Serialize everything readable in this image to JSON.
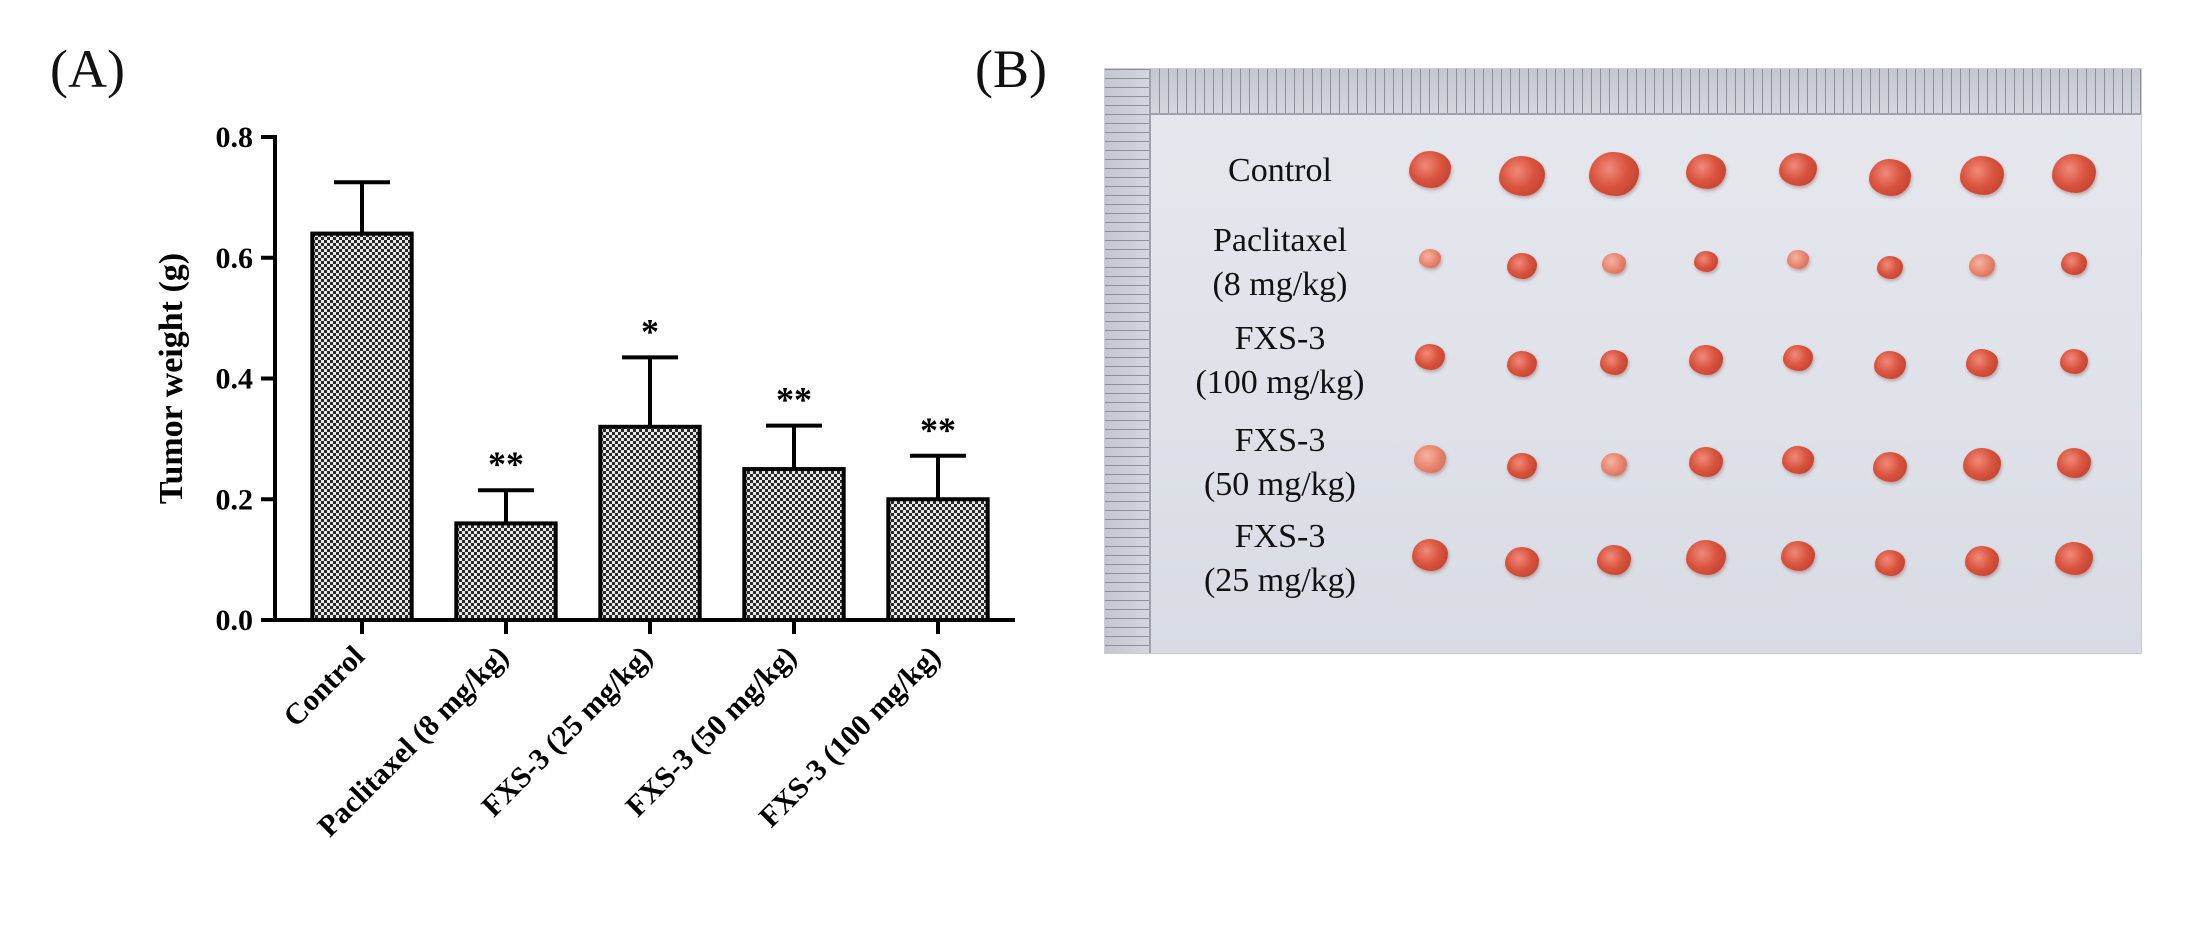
{
  "panels": {
    "a": "(A)",
    "b": "(B)"
  },
  "chart_data": {
    "type": "bar",
    "ylabel": "Tumor weight (g)",
    "xlabel": "",
    "ylim": [
      0,
      0.8
    ],
    "yticks": [
      "0.0",
      "0.2",
      "0.4",
      "0.6",
      "0.8"
    ],
    "categories": [
      "Control",
      "Paclitaxel (8 mg/kg)",
      "FXS-3 (25 mg/kg)",
      "FXS-3 (50 mg/kg)",
      "FXS-3 (100 mg/kg)"
    ],
    "values": [
      0.64,
      0.16,
      0.32,
      0.25,
      0.2
    ],
    "errors": [
      0.085,
      0.055,
      0.115,
      0.072,
      0.072
    ],
    "significance": [
      "",
      "**",
      "*",
      "**",
      "**"
    ],
    "bar_fill": "#c8c8c8",
    "bar_pattern": "checkered"
  },
  "photo": {
    "row_labels": [
      [
        "Control"
      ],
      [
        "Paclitaxel",
        "(8 mg/kg)"
      ],
      [
        "FXS-3",
        "(100 mg/kg)"
      ],
      [
        "FXS-3",
        "(50 mg/kg)"
      ],
      [
        "FXS-3",
        "(25 mg/kg)"
      ]
    ],
    "tumor_counts": [
      8,
      8,
      8,
      8,
      8
    ]
  }
}
